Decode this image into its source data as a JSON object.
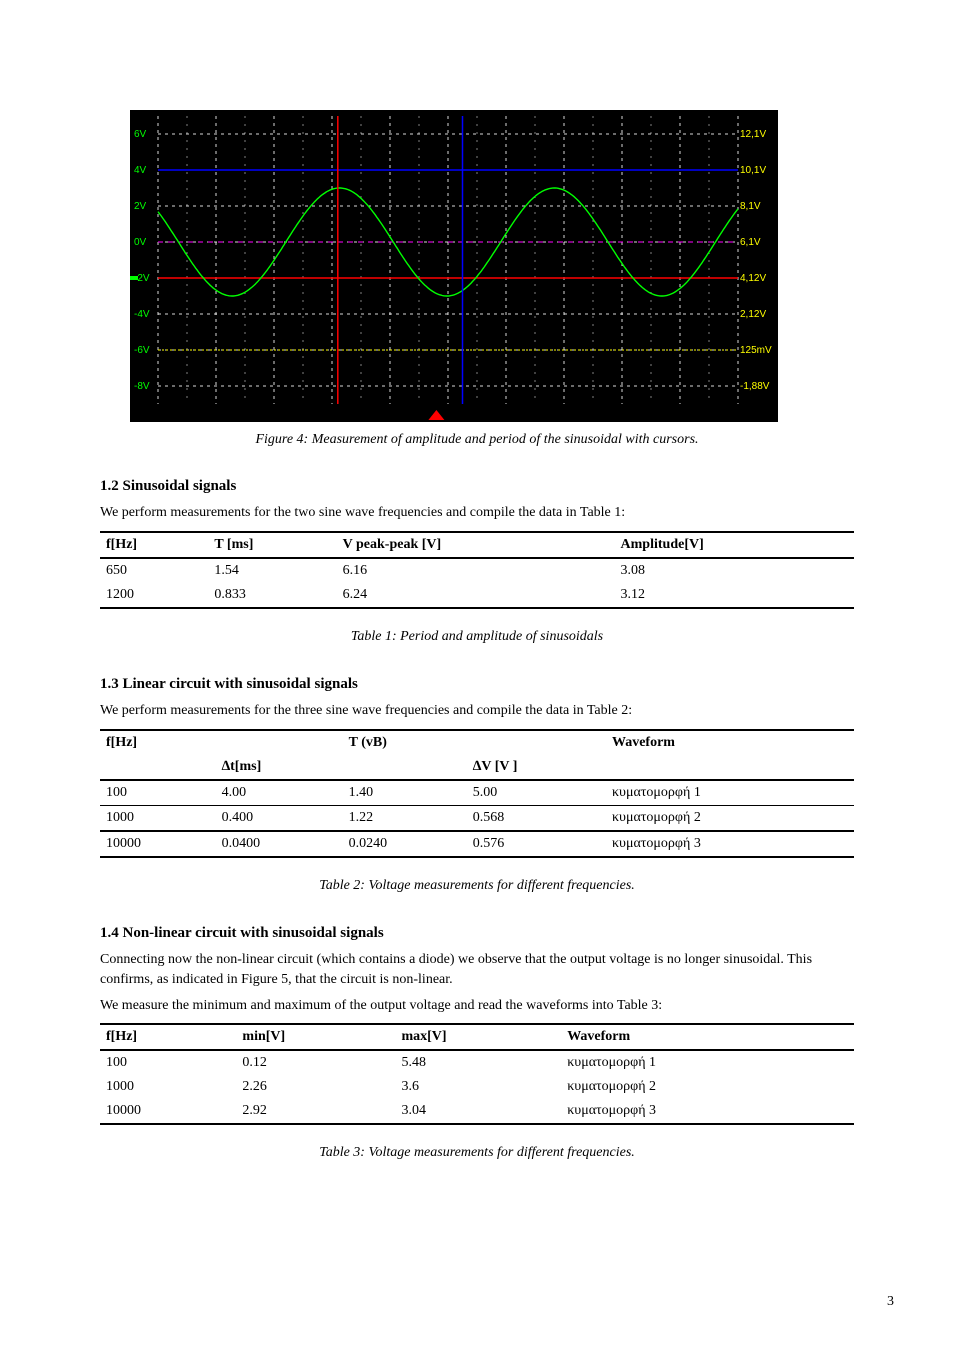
{
  "scope": {
    "widthPx": 648,
    "heightPx": 300,
    "bgColor": "#000000",
    "gridLineColor": "#ffffff",
    "traceColor": "#00ff00",
    "leftLabelColor": "#00ff00",
    "rightLabelColor": "#ffff00",
    "zeroLineColor": "#ff00ff",
    "blueLineColor": "#0000ff",
    "redLineColor": "#ff0000",
    "yellowLineColor": "#ffff00",
    "triggerPointerColor": "#ff0000",
    "leftLabels": [
      "6V",
      "4V",
      "2V",
      "0V",
      "-2V",
      "-4V",
      "-6V",
      "-8V"
    ],
    "leftLabelYVals": [
      6,
      4,
      2,
      0,
      -2,
      -4,
      -6,
      -8
    ],
    "rightLabels": [
      "12,1V",
      "10,1V",
      "8,1V",
      "6,1V",
      "4,12V",
      "2,12V",
      "125mV",
      "-1,88V"
    ],
    "yRange": [
      -9,
      7
    ],
    "xRangeDivs": 10,
    "gridVlines": 10,
    "gridHlines": 8,
    "sineAmplitude": 3,
    "sinePeriodsShown": 2.7,
    "sinePhaseFrac": 0.15,
    "blueHlineY": 4,
    "redHlineY": -2,
    "yellowHlineY": -6,
    "cursor1XFrac": 0.31,
    "cursor1Color": "#ff0000",
    "cursor2XFrac": 0.525,
    "cursor2Color": "#0000ff",
    "greenMarkerY": -2,
    "caption": "Figure 4: Measurement of amplitude and period of the sinusoidal with cursors."
  },
  "sineTable": {
    "title": "1.2 Sinusoidal signals",
    "lead": "We perform measurements for the two sine wave frequencies and compile the data in Table 1:",
    "headers": [
      "f[Hz]",
      "T [ms]",
      "V peak-peak [V]",
      "Amplitude[V]"
    ],
    "rows": [
      [
        "650",
        "1.54",
        "6.16",
        "3.08"
      ],
      [
        "1200",
        "0.833",
        "6.24",
        "3.12"
      ]
    ],
    "caption": "Table 1: Period and amplitude of sinusoidals"
  },
  "linTable": {
    "title": "1.3 Linear circuit with sinusoidal signals",
    "lead": "We perform measurements for the three sine wave frequencies and compile the data in Table 2:",
    "headers1": [
      "f[Hz]",
      "",
      "T (vB)",
      "",
      "Waveform"
    ],
    "headers2": [
      "",
      "∆t[ms]",
      "",
      "∆V [V ]",
      ""
    ],
    "rows": [
      [
        "100",
        "4.00",
        "1.40",
        "5.00",
        "κυματομορφή 1"
      ],
      [
        "1000",
        "0.400",
        "1.22",
        "0.568",
        "κυματομορφή 2"
      ],
      [
        "10000",
        "0.0400",
        "0.0240",
        "0.576",
        "κυματομορφή 3"
      ]
    ],
    "caption": "Table 2: Voltage measurements for different frequencies."
  },
  "nonlinTable": {
    "title": "1.4 Non-linear circuit with sinusoidal signals",
    "lead1": "Connecting now the non-linear circuit (which contains a diode) we observe that the output voltage is no longer sinusoidal. This confirms, as indicated in Figure 5, that the circuit is non-linear.",
    "lead2": "We measure the minimum and maximum of the output voltage and read the waveforms into Table 3:",
    "headers": [
      "f[Hz]",
      "min[V]",
      "max[V]",
      "Waveform"
    ],
    "rows": [
      [
        "100",
        "0.12",
        "5.48",
        "κυματομορφή 1"
      ],
      [
        "1000",
        "2.26",
        "3.6",
        "κυματομορφή 2"
      ],
      [
        "10000",
        "2.92",
        "3.04",
        "κυματομορφή 3"
      ]
    ],
    "caption": "Table 3: Voltage measurements for different frequencies."
  },
  "pageNumber": "3"
}
